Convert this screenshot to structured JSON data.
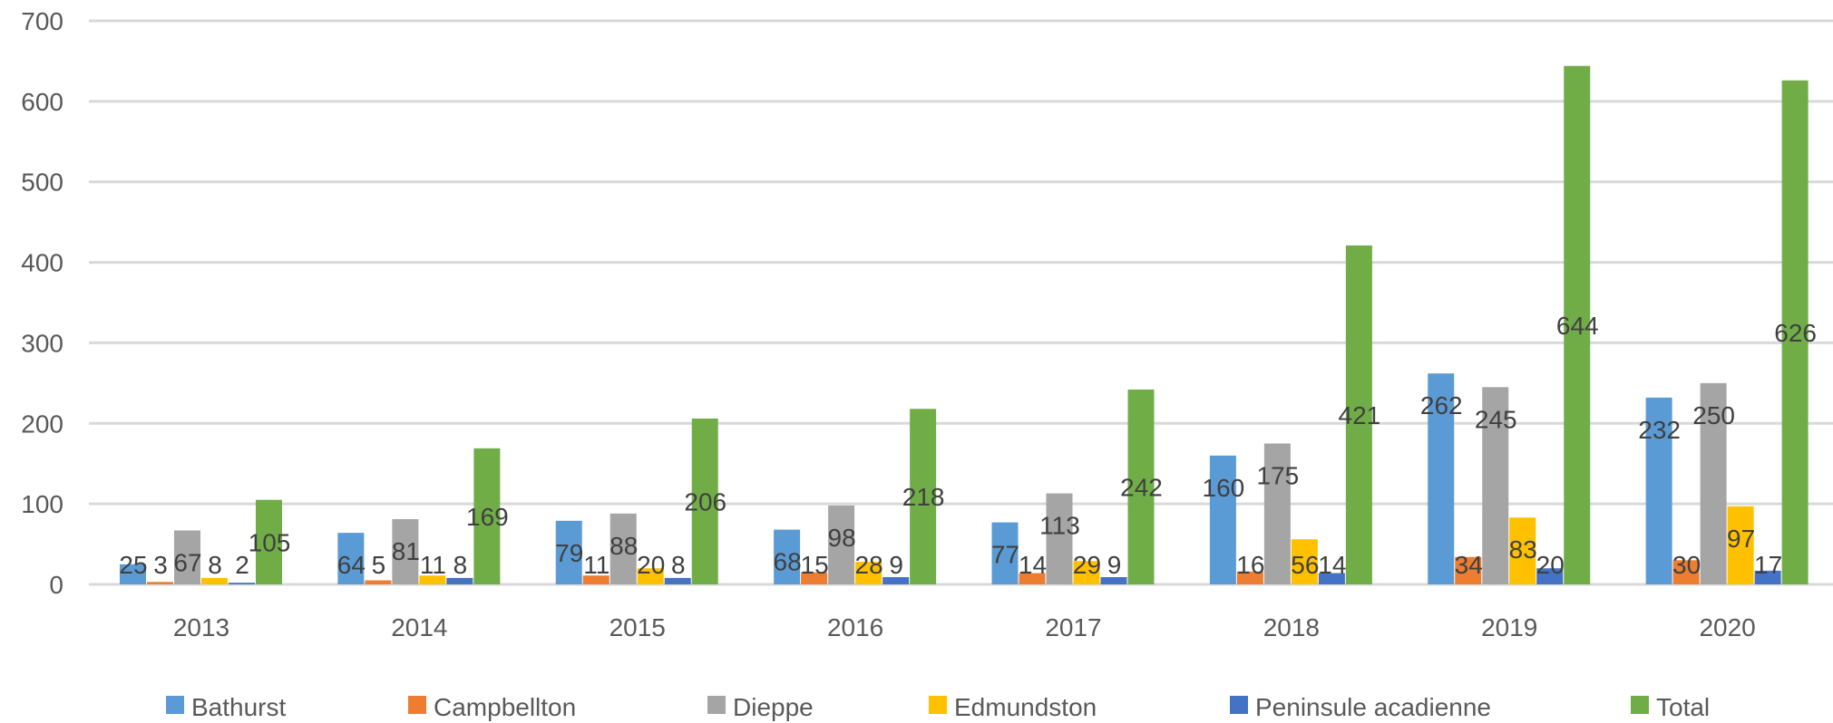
{
  "chart_data": {
    "type": "bar",
    "categories": [
      "2013",
      "2014",
      "2015",
      "2016",
      "2017",
      "2018",
      "2019",
      "2020"
    ],
    "series": [
      {
        "name": "Bathurst",
        "color": "#5B9BD5",
        "values": [
          25,
          64,
          79,
          68,
          77,
          160,
          262,
          232
        ]
      },
      {
        "name": "Campbellton",
        "color": "#ED7D31",
        "values": [
          3,
          5,
          11,
          15,
          14,
          16,
          34,
          30
        ]
      },
      {
        "name": "Dieppe",
        "color": "#A5A5A5",
        "values": [
          67,
          81,
          88,
          98,
          113,
          175,
          245,
          250
        ]
      },
      {
        "name": "Edmundston",
        "color": "#FFC000",
        "values": [
          8,
          11,
          20,
          28,
          29,
          56,
          83,
          97
        ]
      },
      {
        "name": "Peninsule acadienne",
        "color": "#4472C4",
        "values": [
          2,
          8,
          8,
          9,
          9,
          14,
          20,
          17
        ]
      },
      {
        "name": "Total",
        "color": "#70AD47",
        "values": [
          105,
          169,
          206,
          218,
          242,
          421,
          644,
          626
        ]
      }
    ],
    "ylim": [
      0,
      700
    ],
    "yticks": [
      0,
      100,
      200,
      300,
      400,
      500,
      600,
      700
    ],
    "grid": true,
    "legend": "bottom",
    "title": "",
    "xlabel": "",
    "ylabel": ""
  }
}
